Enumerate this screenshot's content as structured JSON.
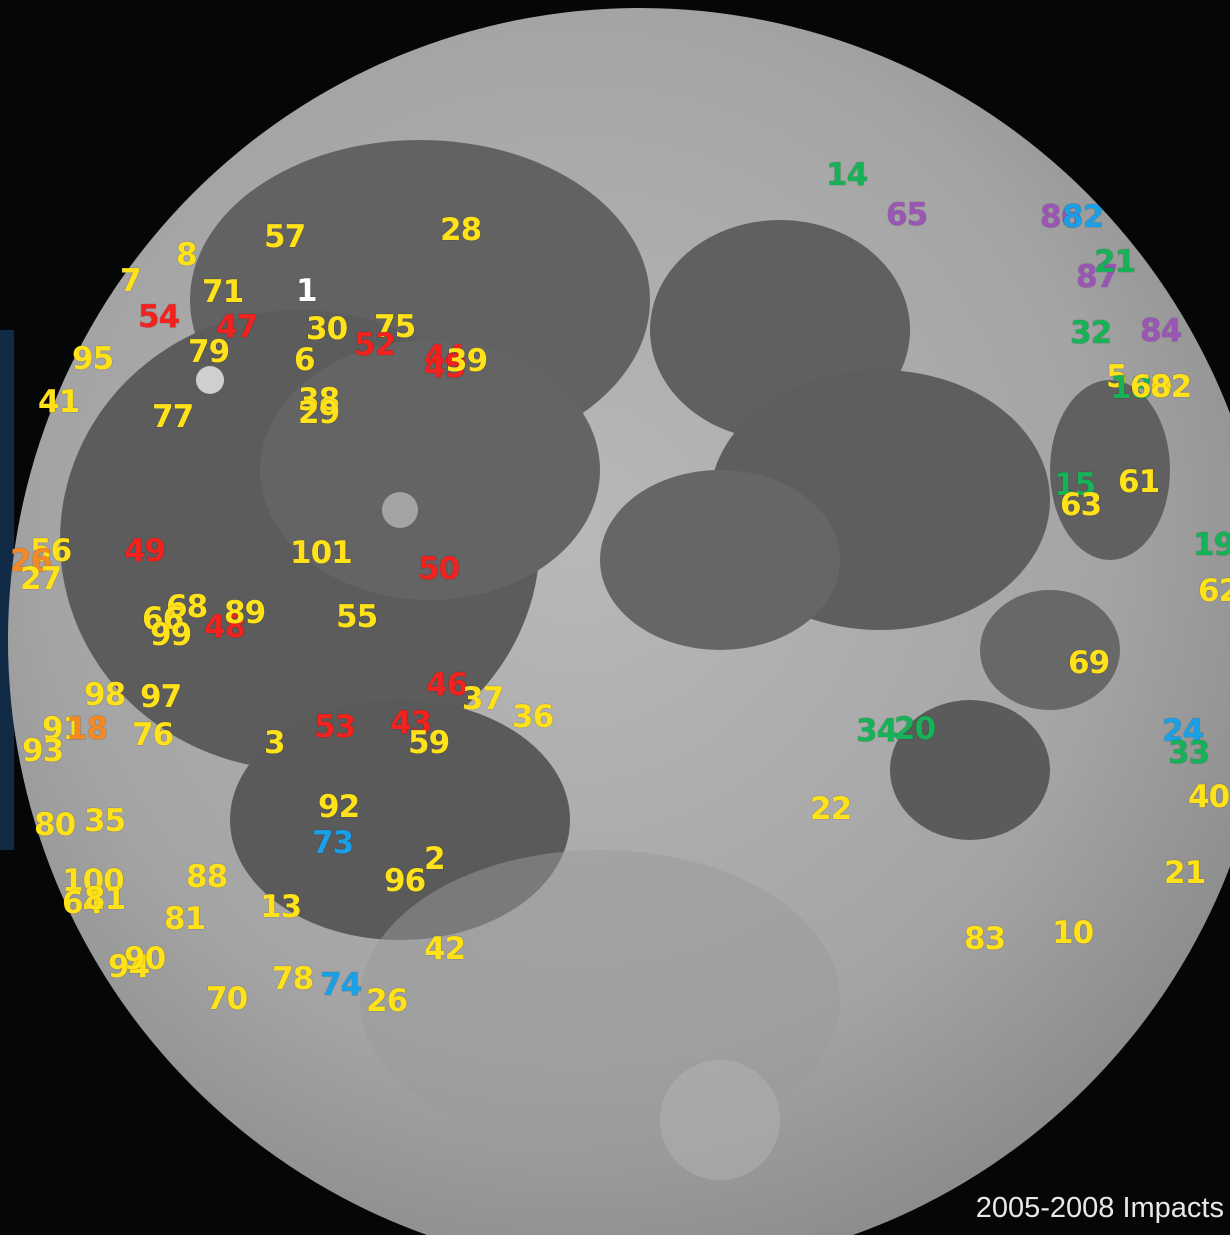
{
  "caption": "2005-2008 Impacts",
  "colors": {
    "background": "#050608",
    "moon_highland": "#a9a9a9",
    "moon_mare": "#5e5e5e",
    "yellow": "#ffe21a",
    "red": "#f2231f",
    "green": "#17b257",
    "blue": "#1aa0e6",
    "purple": "#9a56b4",
    "orange": "#f58a24",
    "white": "#ffffff"
  },
  "impact_labels": [
    "14",
    "65",
    "86",
    "82",
    "87",
    "21",
    "32",
    "84",
    "5",
    "18",
    "60",
    "82",
    "15",
    "63",
    "61",
    "19",
    "62",
    "69",
    "24",
    "33",
    "40",
    "21",
    "83",
    "10",
    "34",
    "20",
    "22",
    "28",
    "57",
    "8",
    "7",
    "71",
    "1",
    "54",
    "47",
    "30",
    "75",
    "52",
    "44",
    "45",
    "39",
    "79",
    "6",
    "95",
    "41",
    "77",
    "38",
    "29",
    "56",
    "26",
    "27",
    "49",
    "101",
    "50",
    "68",
    "66",
    "99",
    "48",
    "89",
    "55",
    "98",
    "97",
    "46",
    "37",
    "36",
    "91",
    "18",
    "93",
    "76",
    "3",
    "53",
    "43",
    "59",
    "92",
    "73",
    "80",
    "35",
    "2",
    "96",
    "100",
    "64",
    "81",
    "88",
    "13",
    "81",
    "42",
    "94",
    "90",
    "70",
    "78",
    "74",
    "26"
  ]
}
